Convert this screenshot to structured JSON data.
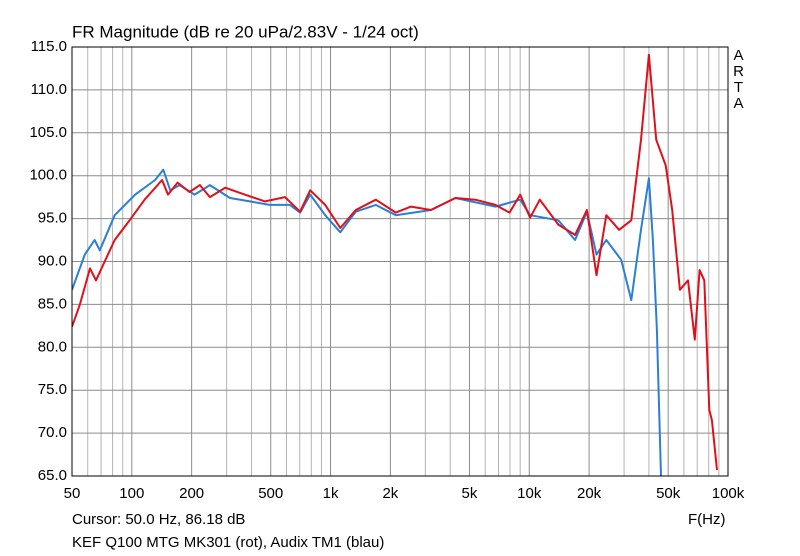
{
  "chart_data": {
    "type": "line",
    "title": "FR Magnitude (dB re 20 uPa/2.83V - 1/24 oct)",
    "side_label": "ARTA",
    "x_label": "F(Hz)",
    "cursor": "Cursor: 50.0 Hz, 86.18 dB",
    "caption": "KEF Q100 MTG MK301 (rot), Audix TM1 (blau)",
    "xscale": "log",
    "grid": true,
    "xlim": [
      50,
      100000
    ],
    "ylim": [
      65,
      115
    ],
    "xticks": [
      50,
      100,
      200,
      500,
      {
        "value": 1000,
        "label": "1k"
      },
      {
        "value": 2000,
        "label": "2k"
      },
      {
        "value": 5000,
        "label": "5k"
      },
      {
        "value": 10000,
        "label": "10k"
      },
      {
        "value": 20000,
        "label": "20k"
      },
      {
        "value": 50000,
        "label": "50k"
      },
      {
        "value": 100000,
        "label": "100k"
      }
    ],
    "xminor": [
      60,
      70,
      80,
      90,
      300,
      400,
      600,
      700,
      800,
      900,
      3000,
      4000,
      6000,
      7000,
      8000,
      9000,
      30000,
      40000,
      60000,
      70000,
      80000,
      90000
    ],
    "yticks": [
      {
        "value": 65,
        "label": "65.0"
      },
      {
        "value": 70,
        "label": "70.0"
      },
      {
        "value": 75,
        "label": "75.0"
      },
      {
        "value": 80,
        "label": "80.0"
      },
      {
        "value": 85,
        "label": "85.0"
      },
      {
        "value": 90,
        "label": "90.0"
      },
      {
        "value": 95,
        "label": "95.0"
      },
      {
        "value": 100,
        "label": "100.0"
      },
      {
        "value": 105,
        "label": "105.0"
      },
      {
        "value": 110,
        "label": "110.0"
      },
      {
        "value": 115,
        "label": "115.0"
      }
    ],
    "series": [
      {
        "color": "#2b7fd4",
        "x": [
          50,
          58,
          65,
          69,
          82,
          104,
          131,
          144,
          156,
          174,
          207,
          247,
          312,
          393,
          494,
          624,
          703,
          790,
          940,
          1120,
          1340,
          1690,
          2130,
          3200,
          4250,
          6750,
          9000,
          10100,
          14000,
          17000,
          19500,
          21800,
          24400,
          29000,
          32600,
          36500,
          40000,
          41900,
          43900,
          46000
        ],
        "values": [
          86.7,
          90.8,
          92.5,
          91.3,
          95.4,
          97.8,
          99.5,
          100.7,
          98.3,
          98.9,
          97.8,
          98.9,
          97.4,
          97.0,
          96.6,
          96.6,
          95.7,
          97.8,
          95.4,
          93.4,
          95.8,
          96.6,
          95.4,
          96.0,
          97.4,
          96.4,
          97.2,
          95.4,
          94.8,
          92.5,
          95.8,
          90.8,
          92.5,
          90.2,
          85.5,
          93.7,
          99.7,
          92.5,
          82.0,
          65.0
        ]
      },
      {
        "color": "#e0101a",
        "x": [
          50,
          54.8,
          61.6,
          66,
          73,
          82,
          97.5,
          116,
          142,
          152,
          170,
          195,
          220,
          247,
          295,
          370,
          468,
          590,
          703,
          790,
          940,
          1120,
          1340,
          1690,
          2130,
          2540,
          3200,
          4250,
          5350,
          6750,
          7950,
          9000,
          10100,
          11300,
          14000,
          17000,
          19500,
          21800,
          24400,
          28300,
          32600,
          36500,
          40000,
          43500,
          48600,
          52400,
          57300,
          62900,
          68100,
          72000,
          76000,
          80500,
          83000,
          88000
        ],
        "values": [
          82.4,
          85.0,
          89.2,
          87.8,
          90.0,
          92.5,
          94.8,
          97.2,
          99.5,
          97.8,
          99.2,
          98.1,
          98.9,
          97.5,
          98.6,
          97.8,
          97.0,
          97.5,
          95.8,
          98.3,
          96.6,
          93.9,
          96.0,
          97.2,
          95.7,
          96.4,
          96.0,
          97.4,
          97.2,
          96.6,
          95.7,
          97.8,
          95.1,
          97.2,
          94.3,
          93.1,
          96.0,
          88.4,
          95.4,
          93.7,
          94.8,
          104.2,
          114.1,
          104.2,
          101.2,
          96.0,
          86.7,
          87.8,
          80.9,
          89.0,
          87.8,
          72.7,
          71.5,
          65.7
        ]
      }
    ]
  }
}
